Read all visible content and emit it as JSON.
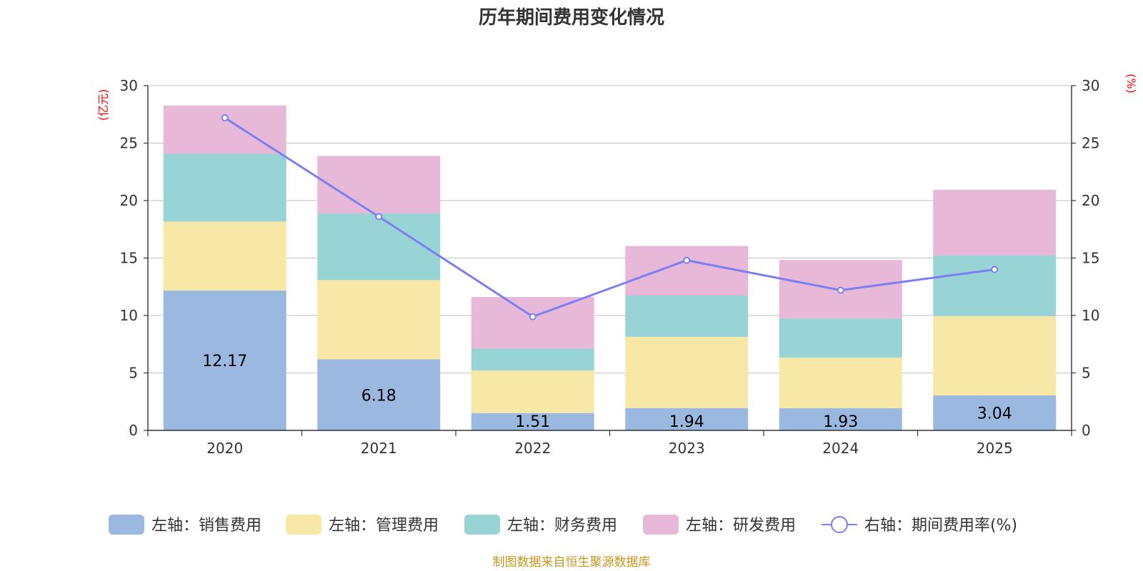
{
  "chart_data": {
    "type": "bar",
    "stacked": true,
    "title": "历年期间费用变化情况",
    "categories": [
      "2020",
      "2021",
      "2022",
      "2023",
      "2024",
      "2025"
    ],
    "left_axis": {
      "unit": "(亿元)",
      "ylim": [
        0,
        30
      ],
      "ticks": [
        0,
        5,
        10,
        15,
        20,
        25,
        30
      ]
    },
    "right_axis": {
      "unit": "(%)",
      "ylim": [
        0,
        30
      ],
      "ticks": [
        0,
        5,
        10,
        15,
        20,
        25,
        30
      ]
    },
    "series": [
      {
        "name": "左轴：销售费用",
        "color": "#9bb8e1",
        "values": [
          12.17,
          6.18,
          1.51,
          1.94,
          1.93,
          3.04
        ],
        "show_labels": true
      },
      {
        "name": "左轴：管理费用",
        "color": "#f8e8a8",
        "values": [
          6.0,
          6.9,
          3.7,
          6.2,
          4.4,
          6.9
        ]
      },
      {
        "name": "左轴：财务费用",
        "color": "#98d4d5",
        "values": [
          5.9,
          5.8,
          1.9,
          3.6,
          3.4,
          5.3
        ]
      },
      {
        "name": "左轴：研发费用",
        "color": "#e8b8d8",
        "values": [
          4.2,
          5.0,
          4.5,
          4.3,
          5.1,
          5.7
        ]
      }
    ],
    "line_series": {
      "name": "右轴：期间费用率(%)",
      "color": "#7b7ff0",
      "values": [
        27.2,
        18.6,
        9.9,
        14.8,
        12.2,
        14.0
      ]
    },
    "legend_position": "bottom",
    "grid": true
  },
  "source_note": "制图数据来自恒生聚源数据库"
}
